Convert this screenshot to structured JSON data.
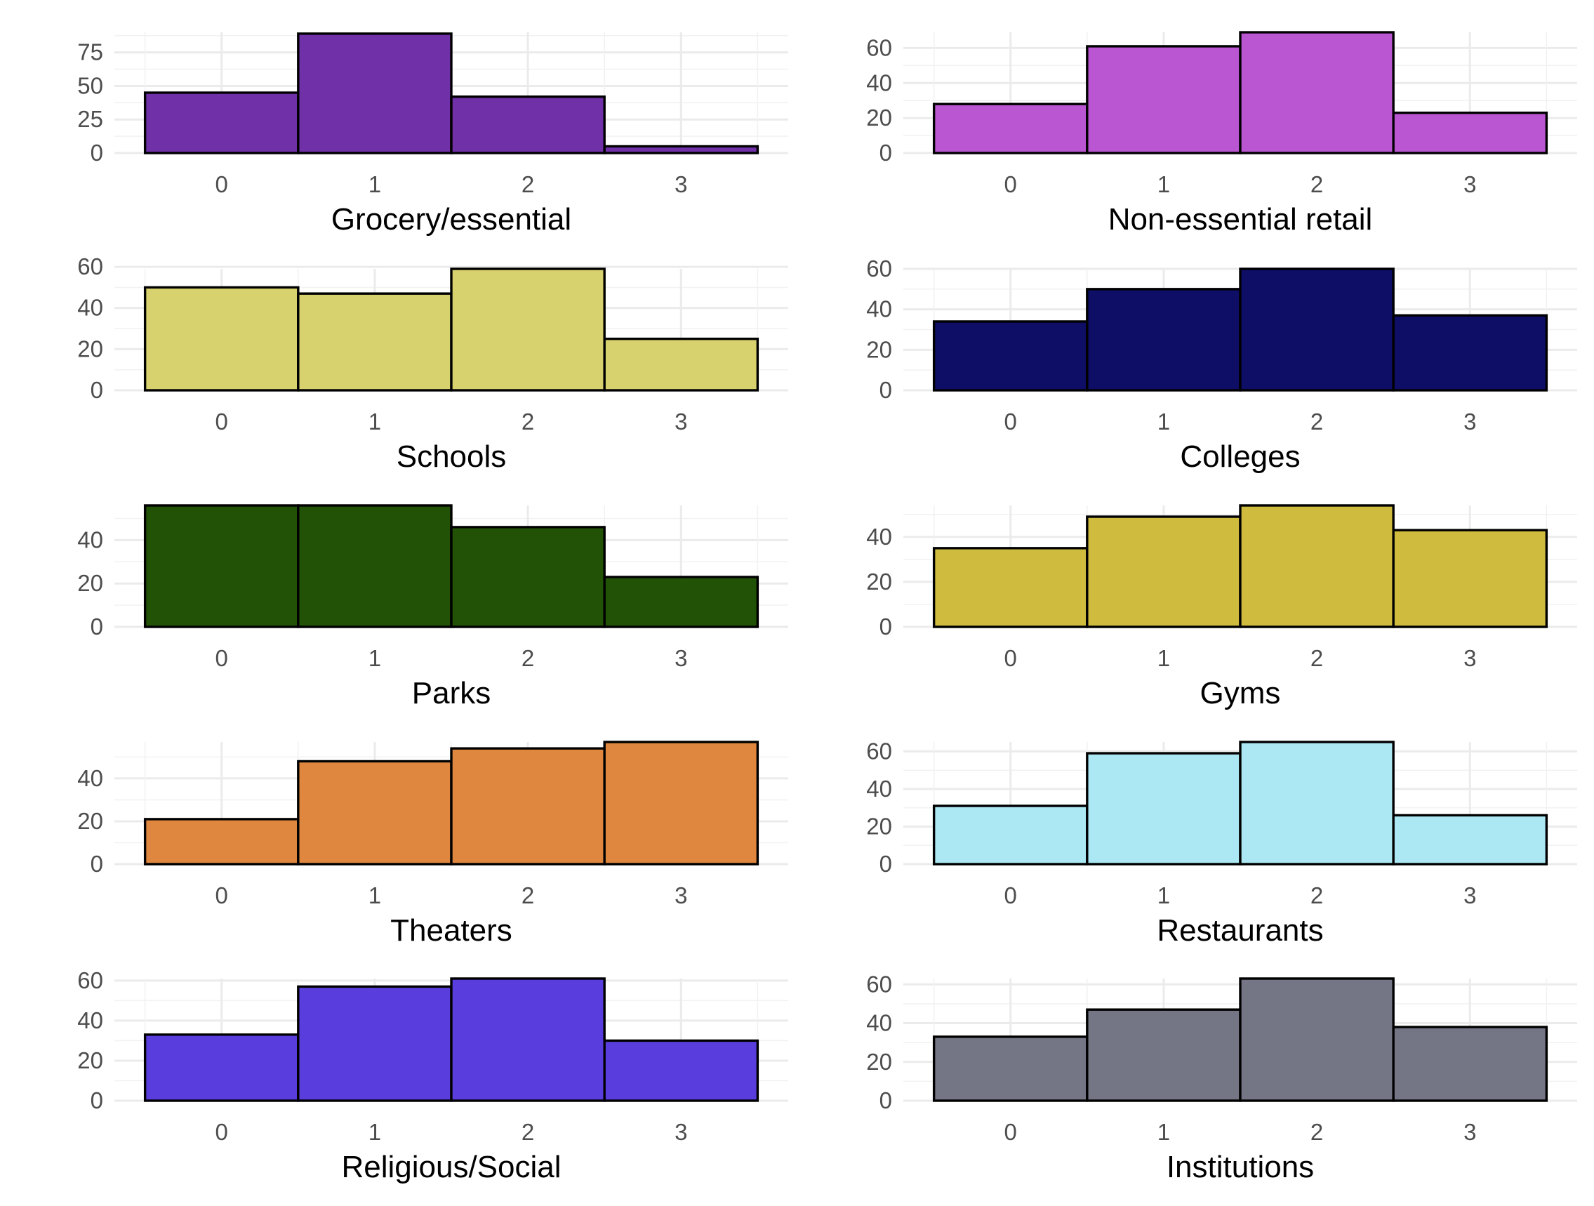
{
  "chart_data": [
    {
      "type": "bar",
      "xlabel": "Grocery/essential",
      "categories": [
        "0",
        "1",
        "2",
        "3"
      ],
      "values": [
        45,
        89,
        42,
        5
      ],
      "ylim": [
        0,
        90
      ],
      "yticks": [
        0,
        25,
        50,
        75
      ],
      "color": "#7030A8"
    },
    {
      "type": "bar",
      "xlabel": "Non-essential retail",
      "categories": [
        "0",
        "1",
        "2",
        "3"
      ],
      "values": [
        28,
        61,
        69,
        23
      ],
      "ylim": [
        0,
        69
      ],
      "yticks": [
        0,
        20,
        40,
        60
      ],
      "color": "#BA56D1"
    },
    {
      "type": "bar",
      "xlabel": "Schools",
      "categories": [
        "0",
        "1",
        "2",
        "3"
      ],
      "values": [
        50,
        47,
        59,
        25
      ],
      "ylim": [
        0,
        59
      ],
      "yticks": [
        0,
        20,
        40,
        60
      ],
      "color": "#D7D26D"
    },
    {
      "type": "bar",
      "xlabel": "Colleges",
      "categories": [
        "0",
        "1",
        "2",
        "3"
      ],
      "values": [
        34,
        50,
        60,
        37
      ],
      "ylim": [
        0,
        60
      ],
      "yticks": [
        0,
        20,
        40,
        60
      ],
      "color": "#0E0E66"
    },
    {
      "type": "bar",
      "xlabel": "Parks",
      "categories": [
        "0",
        "1",
        "2",
        "3"
      ],
      "values": [
        56,
        56,
        46,
        23
      ],
      "ylim": [
        0,
        56
      ],
      "yticks": [
        0,
        20,
        40
      ],
      "color": "#225205"
    },
    {
      "type": "bar",
      "xlabel": "Gyms",
      "categories": [
        "0",
        "1",
        "2",
        "3"
      ],
      "values": [
        35,
        49,
        54,
        43
      ],
      "ylim": [
        0,
        54
      ],
      "yticks": [
        0,
        20,
        40
      ],
      "color": "#CFBB3E"
    },
    {
      "type": "bar",
      "xlabel": "Theaters",
      "categories": [
        "0",
        "1",
        "2",
        "3"
      ],
      "values": [
        21,
        48,
        54,
        57
      ],
      "ylim": [
        0,
        57
      ],
      "yticks": [
        0,
        20,
        40
      ],
      "color": "#DF873F"
    },
    {
      "type": "bar",
      "xlabel": "Restaurants",
      "categories": [
        "0",
        "1",
        "2",
        "3"
      ],
      "values": [
        31,
        59,
        65,
        26
      ],
      "ylim": [
        0,
        65
      ],
      "yticks": [
        0,
        20,
        40,
        60
      ],
      "color": "#ACE7F4"
    },
    {
      "type": "bar",
      "xlabel": "Religious/Social",
      "categories": [
        "0",
        "1",
        "2",
        "3"
      ],
      "values": [
        33,
        57,
        61,
        30
      ],
      "ylim": [
        0,
        61
      ],
      "yticks": [
        0,
        20,
        40,
        60
      ],
      "color": "#5A3EDD"
    },
    {
      "type": "bar",
      "xlabel": "Institutions",
      "categories": [
        "0",
        "1",
        "2",
        "3"
      ],
      "values": [
        33,
        47,
        63,
        38
      ],
      "ylim": [
        0,
        63
      ],
      "yticks": [
        0,
        20,
        40,
        60
      ],
      "color": "#747686"
    }
  ]
}
